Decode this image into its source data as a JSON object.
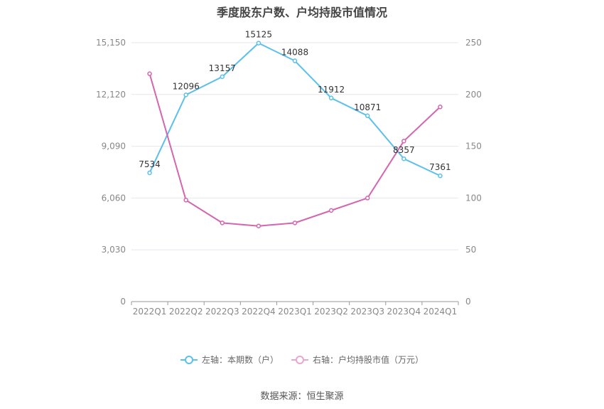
{
  "chart_data": {
    "type": "line",
    "title": "季度股东户数、户均持股市值情况",
    "categories": [
      "2022Q1",
      "2022Q2",
      "2022Q3",
      "2022Q4",
      "2023Q1",
      "2023Q2",
      "2023Q3",
      "2023Q4",
      "2024Q1"
    ],
    "left_axis": {
      "ylim": [
        0,
        15150
      ],
      "ticks": [
        "0",
        "3,030",
        "6,060",
        "9,090",
        "12,120",
        "15,150"
      ]
    },
    "right_axis": {
      "ylim": [
        0,
        250
      ],
      "ticks": [
        "0",
        "50",
        "100",
        "150",
        "200",
        "250"
      ]
    },
    "series": [
      {
        "name": "左轴：本期数（户）",
        "axis": "left",
        "color": "#5bc0eb",
        "values": [
          7534,
          12096,
          13157,
          15125,
          14088,
          11912,
          10871,
          8357,
          7361
        ],
        "labels": [
          "7534",
          "12096",
          "13157",
          "15125",
          "14088",
          "11912",
          "10871",
          "8357",
          "7361"
        ]
      },
      {
        "name": "右轴：户均持股市值（万元）",
        "axis": "right",
        "color": "#d466b0",
        "values": [
          220,
          98,
          76,
          73,
          76,
          88,
          100,
          155,
          188
        ]
      }
    ],
    "grid": true,
    "legend_position": "bottom"
  },
  "source": "数据来源：恒生聚源"
}
